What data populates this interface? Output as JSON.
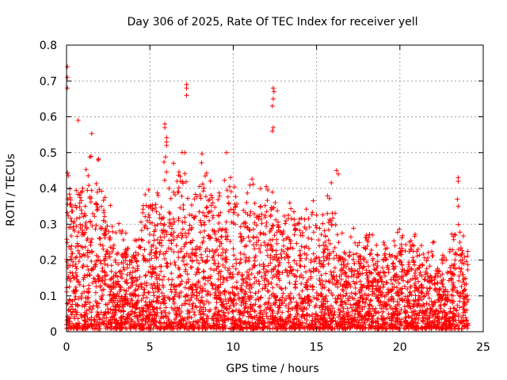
{
  "chart_data": {
    "type": "scatter",
    "title": "Day 306 of 2025, Rate Of TEC Index for receiver yell",
    "xlabel": "GPS time / hours",
    "ylabel": "ROTI / TECUs",
    "xlim": [
      0,
      25
    ],
    "ylim": [
      0,
      0.8
    ],
    "xticks": [
      "0",
      "5",
      "10",
      "15",
      "20",
      "25"
    ],
    "yticks": [
      "0",
      "0.1",
      "0.2",
      "0.3",
      "0.4",
      "0.5",
      "0.6",
      "0.7",
      "0.8"
    ],
    "grid": true,
    "legend": "none",
    "marker": "+",
    "color": "#ff0000",
    "envelope": {
      "description": "dense red + markers; approximate upper envelope of ROTI per hour",
      "x": [
        0,
        0.5,
        1,
        1.5,
        2,
        2.5,
        3,
        3.5,
        4,
        4.5,
        5,
        5.5,
        6,
        6.5,
        7,
        7.5,
        8,
        8.5,
        9,
        9.5,
        10,
        10.5,
        11,
        11.5,
        12,
        12.5,
        13,
        13.5,
        14,
        14.5,
        15,
        15.5,
        16,
        16.5,
        17,
        17.5,
        18,
        18.5,
        19,
        19.5,
        20,
        20.5,
        21,
        21.5,
        22,
        22.5,
        23,
        23.5,
        24
      ],
      "y": [
        0.45,
        0.38,
        0.4,
        0.48,
        0.42,
        0.3,
        0.25,
        0.26,
        0.24,
        0.33,
        0.45,
        0.34,
        0.5,
        0.4,
        0.45,
        0.33,
        0.42,
        0.4,
        0.33,
        0.35,
        0.4,
        0.34,
        0.36,
        0.33,
        0.38,
        0.35,
        0.33,
        0.31,
        0.36,
        0.29,
        0.33,
        0.28,
        0.4,
        0.25,
        0.27,
        0.22,
        0.32,
        0.2,
        0.22,
        0.21,
        0.27,
        0.23,
        0.25,
        0.19,
        0.2,
        0.18,
        0.24,
        0.33,
        0.2
      ]
    },
    "outliers": [
      {
        "x": 0.05,
        "y": 0.74
      },
      {
        "x": 0.05,
        "y": 0.71
      },
      {
        "x": 0.05,
        "y": 0.68
      },
      {
        "x": 0.7,
        "y": 0.59
      },
      {
        "x": 5.9,
        "y": 0.58
      },
      {
        "x": 5.9,
        "y": 0.57
      },
      {
        "x": 6.0,
        "y": 0.53
      },
      {
        "x": 6.0,
        "y": 0.52
      },
      {
        "x": 7.2,
        "y": 0.69
      },
      {
        "x": 7.2,
        "y": 0.68
      },
      {
        "x": 7.2,
        "y": 0.66
      },
      {
        "x": 7.1,
        "y": 0.5
      },
      {
        "x": 9.6,
        "y": 0.5
      },
      {
        "x": 12.4,
        "y": 0.68
      },
      {
        "x": 12.45,
        "y": 0.67
      },
      {
        "x": 12.4,
        "y": 0.65
      },
      {
        "x": 12.35,
        "y": 0.63
      },
      {
        "x": 12.4,
        "y": 0.57
      },
      {
        "x": 12.35,
        "y": 0.56
      },
      {
        "x": 16.2,
        "y": 0.45
      },
      {
        "x": 16.3,
        "y": 0.44
      },
      {
        "x": 23.5,
        "y": 0.43
      },
      {
        "x": 23.5,
        "y": 0.42
      },
      {
        "x": 23.45,
        "y": 0.37
      },
      {
        "x": 23.5,
        "y": 0.35
      }
    ]
  }
}
